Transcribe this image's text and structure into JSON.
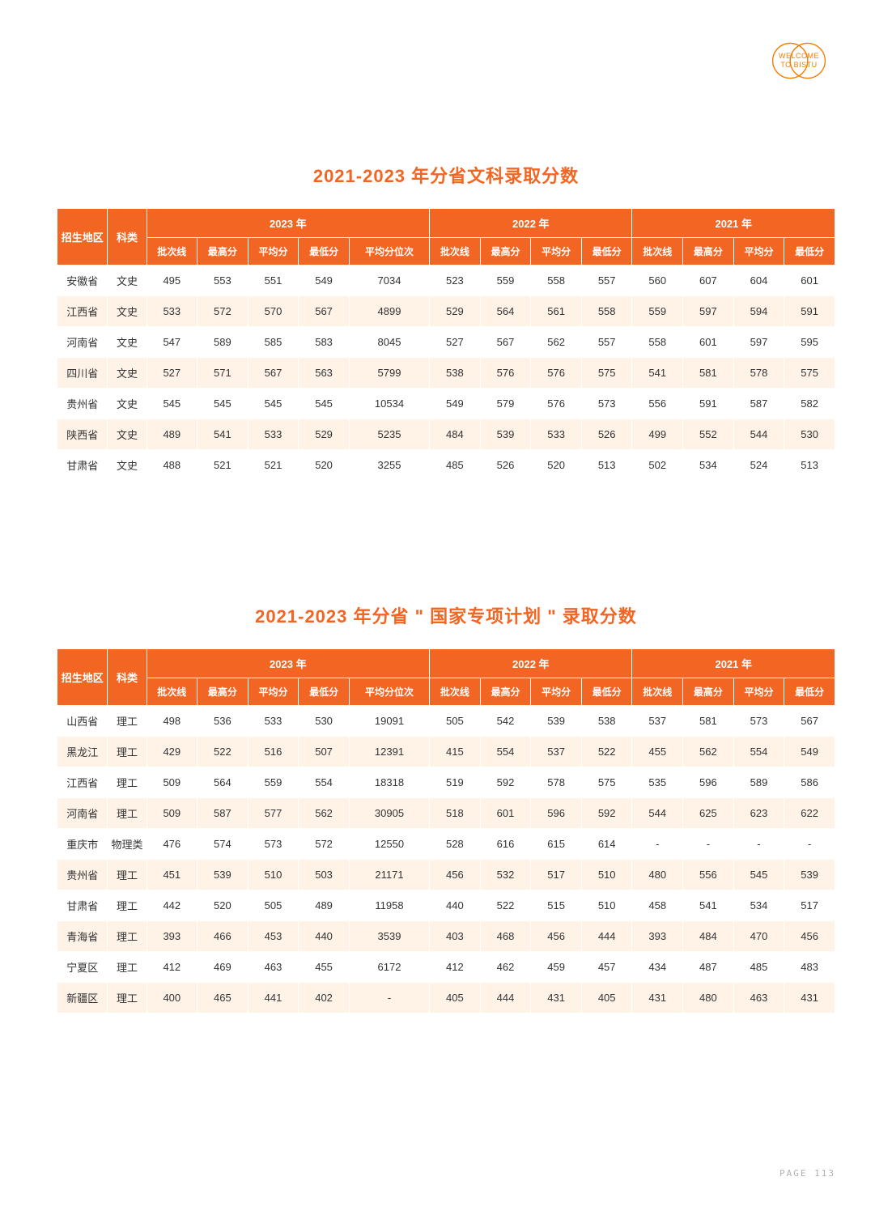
{
  "logo": {
    "line1": "WELCOME",
    "line2": "TO BISTU"
  },
  "pageNumber": "PAGE 113",
  "table1": {
    "title": "2021-2023 年分省文科录取分数",
    "yearHeaders": [
      "2023 年",
      "2022 年",
      "2021 年"
    ],
    "rowHeaders": [
      "招生地区",
      "科类"
    ],
    "colHeaders2023": [
      "批次线",
      "最高分",
      "平均分",
      "最低分",
      "平均分位次"
    ],
    "colHeaders2022": [
      "批次线",
      "最高分",
      "平均分",
      "最低分"
    ],
    "colHeaders2021": [
      "批次线",
      "最高分",
      "平均分",
      "最低分"
    ],
    "rows": [
      {
        "region": "安徽省",
        "type": "文史",
        "d": [
          495,
          553,
          551,
          549,
          7034,
          523,
          559,
          558,
          557,
          560,
          607,
          604,
          601
        ]
      },
      {
        "region": "江西省",
        "type": "文史",
        "d": [
          533,
          572,
          570,
          567,
          4899,
          529,
          564,
          561,
          558,
          559,
          597,
          594,
          591
        ]
      },
      {
        "region": "河南省",
        "type": "文史",
        "d": [
          547,
          589,
          585,
          583,
          8045,
          527,
          567,
          562,
          557,
          558,
          601,
          597,
          595
        ]
      },
      {
        "region": "四川省",
        "type": "文史",
        "d": [
          527,
          571,
          567,
          563,
          5799,
          538,
          576,
          576,
          575,
          541,
          581,
          578,
          575
        ]
      },
      {
        "region": "贵州省",
        "type": "文史",
        "d": [
          545,
          545,
          545,
          545,
          10534,
          549,
          579,
          576,
          573,
          556,
          591,
          587,
          582
        ]
      },
      {
        "region": "陕西省",
        "type": "文史",
        "d": [
          489,
          541,
          533,
          529,
          5235,
          484,
          539,
          533,
          526,
          499,
          552,
          544,
          530
        ]
      },
      {
        "region": "甘肃省",
        "type": "文史",
        "d": [
          488,
          521,
          521,
          520,
          3255,
          485,
          526,
          520,
          513,
          502,
          534,
          524,
          513
        ]
      }
    ]
  },
  "table2": {
    "title": "2021-2023 年分省 \" 国家专项计划 \" 录取分数",
    "yearHeaders": [
      "2023 年",
      "2022 年",
      "2021 年"
    ],
    "rowHeaders": [
      "招生地区",
      "科类"
    ],
    "colHeaders2023": [
      "批次线",
      "最高分",
      "平均分",
      "最低分",
      "平均分位次"
    ],
    "colHeaders2022": [
      "批次线",
      "最高分",
      "平均分",
      "最低分"
    ],
    "colHeaders2021": [
      "批次线",
      "最高分",
      "平均分",
      "最低分"
    ],
    "rows": [
      {
        "region": "山西省",
        "type": "理工",
        "d": [
          498,
          536,
          533,
          530,
          19091,
          505,
          542,
          539,
          538,
          537,
          581,
          573,
          567
        ]
      },
      {
        "region": "黑龙江",
        "type": "理工",
        "d": [
          429,
          522,
          516,
          507,
          12391,
          415,
          554,
          537,
          522,
          455,
          562,
          554,
          549
        ]
      },
      {
        "region": "江西省",
        "type": "理工",
        "d": [
          509,
          564,
          559,
          554,
          18318,
          519,
          592,
          578,
          575,
          535,
          596,
          589,
          586
        ]
      },
      {
        "region": "河南省",
        "type": "理工",
        "d": [
          509,
          587,
          577,
          562,
          30905,
          518,
          601,
          596,
          592,
          544,
          625,
          623,
          622
        ]
      },
      {
        "region": "重庆市",
        "type": "物理类",
        "d": [
          476,
          574,
          573,
          572,
          12550,
          528,
          616,
          615,
          614,
          "-",
          "-",
          "-",
          "-"
        ]
      },
      {
        "region": "贵州省",
        "type": "理工",
        "d": [
          451,
          539,
          510,
          503,
          21171,
          456,
          532,
          517,
          510,
          480,
          556,
          545,
          539
        ]
      },
      {
        "region": "甘肃省",
        "type": "理工",
        "d": [
          442,
          520,
          505,
          489,
          11958,
          440,
          522,
          515,
          510,
          458,
          541,
          534,
          517
        ]
      },
      {
        "region": "青海省",
        "type": "理工",
        "d": [
          393,
          466,
          453,
          440,
          3539,
          403,
          468,
          456,
          444,
          393,
          484,
          470,
          456
        ]
      },
      {
        "region": "宁夏区",
        "type": "理工",
        "d": [
          412,
          469,
          463,
          455,
          6172,
          412,
          462,
          459,
          457,
          434,
          487,
          485,
          483
        ]
      },
      {
        "region": "新疆区",
        "type": "理工",
        "d": [
          400,
          465,
          441,
          402,
          "-",
          405,
          444,
          431,
          405,
          431,
          480,
          463,
          431
        ]
      }
    ]
  }
}
